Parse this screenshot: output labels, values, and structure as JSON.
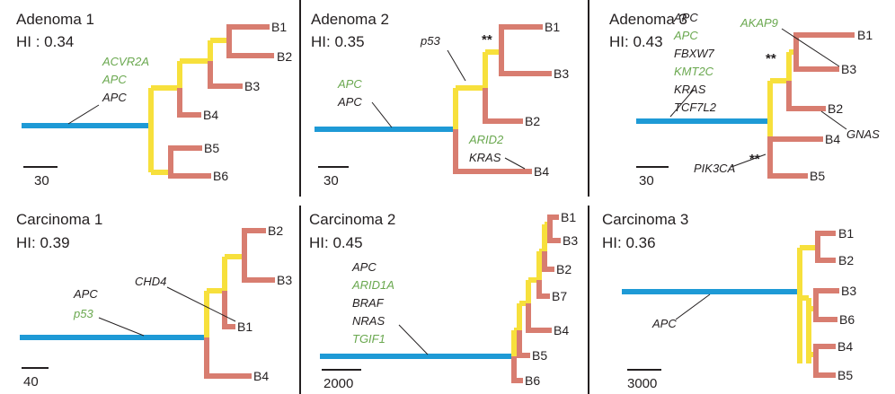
{
  "colors": {
    "trunk": "#1e9ad6",
    "shared": "#f7e03c",
    "private": "#d87d70",
    "driver_black": "#231f20",
    "driver_green": "#6aa84f"
  },
  "panels": [
    {
      "title": "Adenoma 1",
      "hi": "HI : 0.34",
      "scale": "30",
      "leaves": [
        "B1",
        "B2",
        "B3",
        "B4",
        "B5",
        "B6"
      ],
      "genes": [
        "ACVR2A",
        "APC",
        "APC"
      ]
    },
    {
      "title": "Adenoma 2",
      "hi": "HI: 0.35",
      "scale": "30",
      "leaves": [
        "B1",
        "B3",
        "B2",
        "B4"
      ],
      "genes": [
        "APC",
        "APC",
        "p53",
        "ARID2",
        "KRAS"
      ],
      "stars": [
        "**"
      ]
    },
    {
      "title": "Adenoma 3",
      "hi": "HI: 0.43",
      "scale": "30",
      "leaves": [
        "B1",
        "B3",
        "B2",
        "B4",
        "B5"
      ],
      "genes": [
        "APC",
        "APC",
        "FBXW7",
        "KMT2C",
        "KRAS",
        "TCF7L2",
        "AKAP9",
        "GNAS",
        "PIK3CA"
      ],
      "stars": [
        "**",
        "**"
      ]
    },
    {
      "title": "Carcinoma 1",
      "hi": "HI: 0.39",
      "scale": "40",
      "leaves": [
        "B2",
        "B3",
        "B1",
        "B4"
      ],
      "genes": [
        "APC",
        "p53",
        "CHD4"
      ]
    },
    {
      "title": "Carcinoma 2",
      "hi": "HI: 0.45",
      "scale": "2000",
      "leaves": [
        "B1",
        "B3",
        "B2",
        "B7",
        "B4",
        "B5",
        "B6"
      ],
      "genes": [
        "APC",
        "ARID1A",
        "BRAF",
        "NRAS",
        "TGIF1"
      ]
    },
    {
      "title": "Carcinoma 3",
      "hi": "HI: 0.36",
      "scale": "3000",
      "leaves": [
        "B1",
        "B2",
        "B3",
        "B6",
        "B4",
        "B5"
      ],
      "genes": [
        "APC"
      ]
    }
  ]
}
